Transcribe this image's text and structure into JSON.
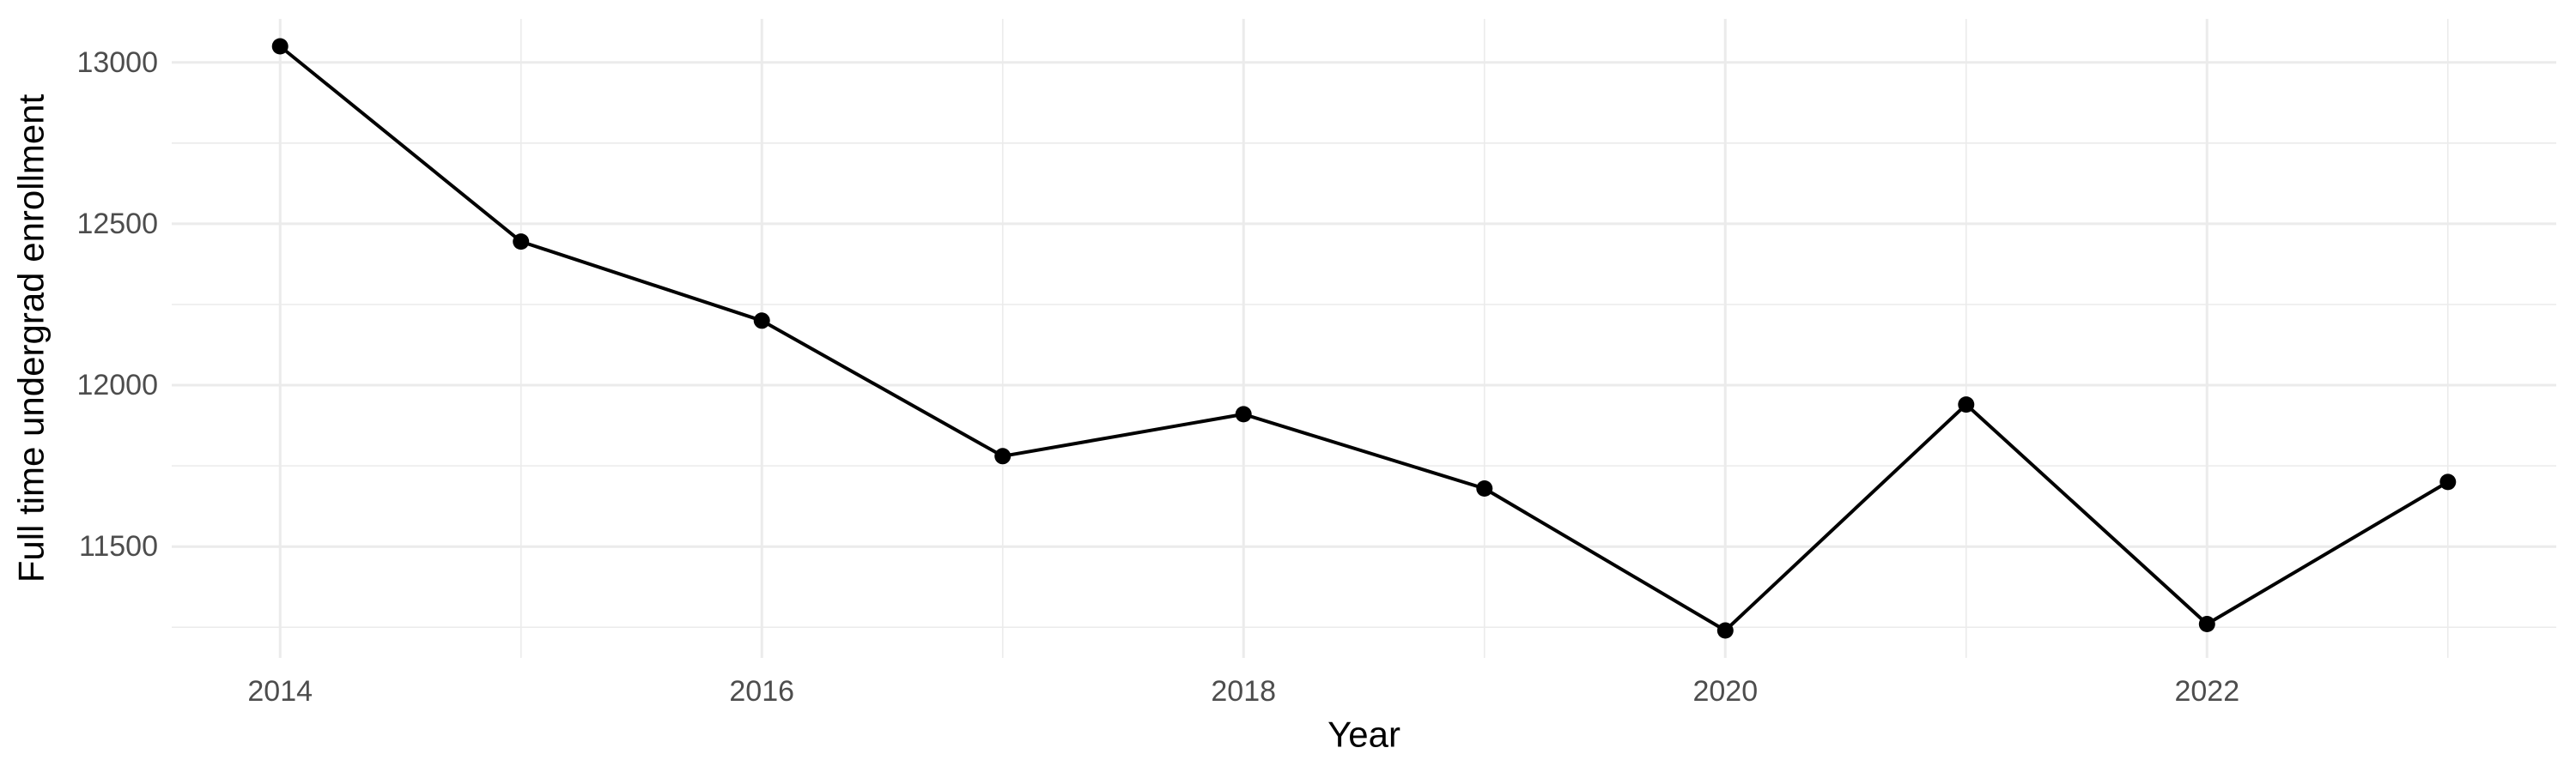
{
  "figure": {
    "background_color": "#FFFFFF"
  },
  "chart_data": {
    "type": "line",
    "title": "",
    "xlabel": "Year",
    "ylabel": "Full time undergrad enrollment",
    "x": [
      2014,
      2015,
      2016,
      2017,
      2018,
      2019,
      2020,
      2021,
      2022,
      2023
    ],
    "series": [
      {
        "name": "Full time undergrad enrollment",
        "values": [
          13050,
          12445,
          12200,
          11780,
          11910,
          11680,
          11240,
          11940,
          11260,
          11700
        ]
      }
    ],
    "xlim": [
      2013.55,
      2023.45
    ],
    "ylim": [
      11155,
      13135
    ],
    "x_ticks_major": [
      2014,
      2016,
      2018,
      2020,
      2022
    ],
    "x_gridlines_minor": [
      2015,
      2017,
      2019,
      2021,
      2023
    ],
    "y_ticks_major": [
      11500,
      12000,
      12500,
      13000
    ],
    "y_gridlines_minor": [
      11250,
      11750,
      12250,
      12750
    ],
    "grid": true,
    "legend": "none",
    "style": {
      "line_color": "#000000",
      "point_color": "#000000",
      "grid_color": "#EBEBEB",
      "tick_label_color": "#4D4D4D",
      "axis_title_color": "#000000",
      "background": "#FFFFFF"
    }
  }
}
